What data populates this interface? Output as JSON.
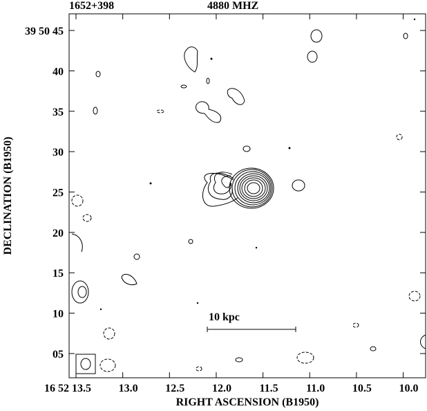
{
  "chart_data": {
    "type": "contour",
    "title": "1652+398",
    "subtitle": "4880 MHZ",
    "x_label": "RIGHT ASCENSION (B1950)",
    "y_label": "DECLINATION (B1950)",
    "annotation": "10 kpc",
    "xlim": [
      13.574,
      9.76
    ],
    "xticks": [
      {
        "value": 13.5,
        "label": "16 52 13.5"
      },
      {
        "value": 13.0,
        "label": "13.0"
      },
      12.5,
      {
        "value": 12.0,
        "label": "12.0"
      },
      11.5,
      {
        "value": 11.0,
        "label": "11.0"
      },
      10.5,
      {
        "value": 10.0,
        "label": "10.0"
      }
    ],
    "ylim": [
      2.0,
      47.06
    ],
    "yticks": [
      {
        "value": 45,
        "label": "39 50 45"
      },
      40,
      35,
      30,
      25,
      20,
      15,
      10,
      {
        "value": 5,
        "label": "05"
      }
    ]
  }
}
